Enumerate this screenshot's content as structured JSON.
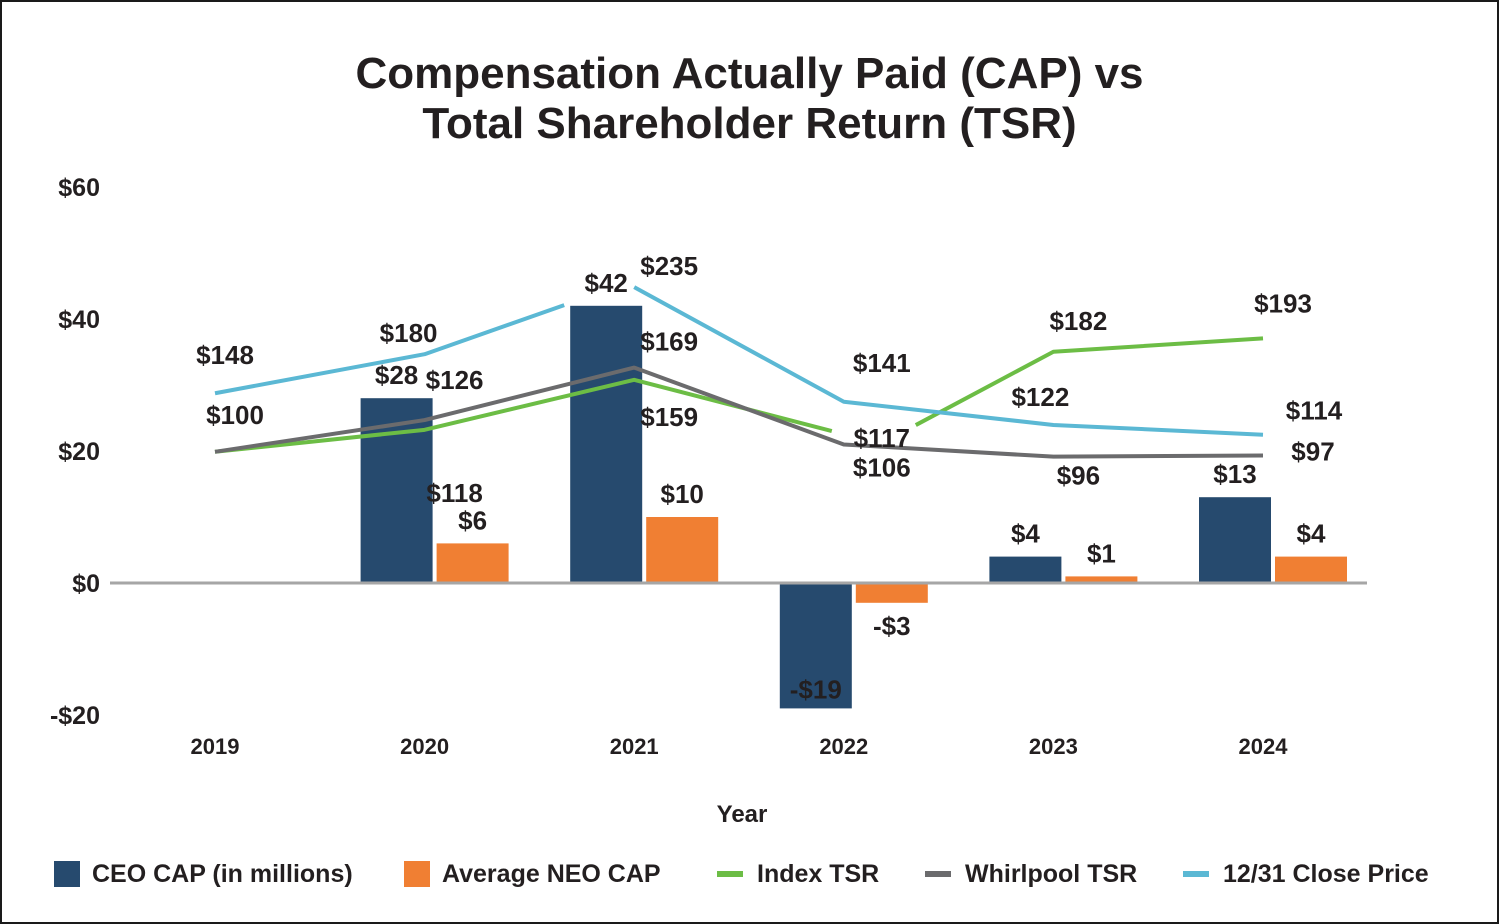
{
  "chart_data": {
    "type": "bar",
    "title_line1": "Compensation Actually Paid (CAP) vs",
    "title_line2": "Total Shareholder Return (TSR)",
    "xlabel": "Year",
    "ylabel": "",
    "ylim": [
      -20,
      60
    ],
    "y_ticks": [
      {
        "value": 60,
        "label": "$60"
      },
      {
        "value": 40,
        "label": "$40"
      },
      {
        "value": 20,
        "label": "$20"
      },
      {
        "value": 0,
        "label": "$0"
      },
      {
        "value": -20,
        "label": "-$20"
      }
    ],
    "categories": [
      "2019",
      "2020",
      "2021",
      "2022",
      "2023",
      "2024"
    ],
    "bar_series": [
      {
        "name": "CEO CAP (in millions)",
        "color": "#264a6e",
        "values": [
          null,
          28,
          42,
          -19,
          4,
          13
        ],
        "labels": [
          "",
          "$28",
          "$42",
          "-$19",
          "$4",
          "$13"
        ]
      },
      {
        "name": "Average NEO CAP",
        "color": "#f07f33",
        "values": [
          null,
          6,
          10,
          -3,
          1,
          4
        ],
        "labels": [
          "",
          "$6",
          "$10",
          "-$3",
          "$1",
          "$4"
        ]
      }
    ],
    "line_series": [
      {
        "name": "Index TSR",
        "color": "#6cbd45",
        "values": [
          100,
          118,
          159,
          117,
          182,
          193
        ],
        "labels": [
          "$100",
          "$118",
          "$159",
          "$117",
          "$182",
          "$193"
        ]
      },
      {
        "name": "Whirlpool TSR",
        "color": "#6b6b6d",
        "values": [
          100,
          126,
          169,
          106,
          96,
          97
        ],
        "labels": [
          "",
          "$126",
          "$169",
          "$106",
          "$96",
          "$97"
        ]
      },
      {
        "name": "12/31 Close Price",
        "color": "#5bb8d4",
        "values": [
          148,
          180,
          235,
          141,
          122,
          114
        ],
        "labels": [
          "$148",
          "$180",
          "$235",
          "$141",
          "$122",
          "$114"
        ]
      }
    ],
    "legend_position": "bottom"
  },
  "legend": [
    {
      "label": "CEO CAP (in millions)",
      "color": "#264a6e",
      "kind": "box"
    },
    {
      "label": "Average NEO CAP",
      "color": "#f07f33",
      "kind": "box"
    },
    {
      "label": "Index TSR",
      "color": "#6cbd45",
      "kind": "line"
    },
    {
      "label": "Whirlpool TSR",
      "color": "#6b6b6d",
      "kind": "line"
    },
    {
      "label": "12/31 Close Price",
      "color": "#5bb8d4",
      "kind": "line"
    }
  ]
}
